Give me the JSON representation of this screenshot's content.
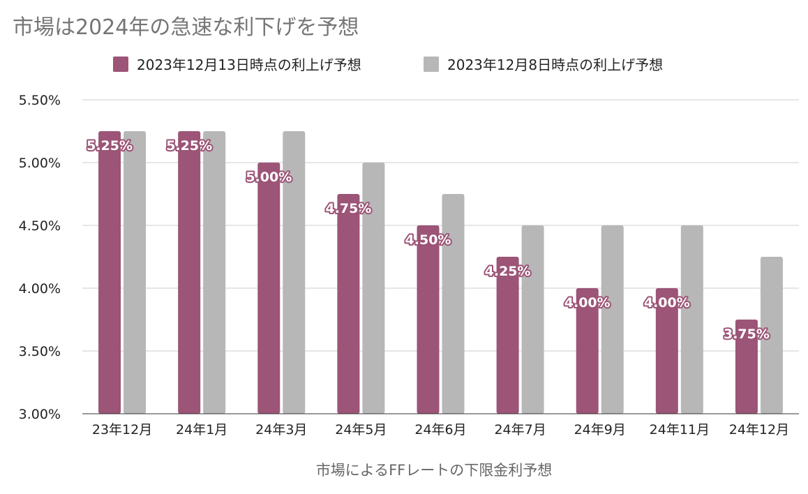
{
  "chart_data": {
    "type": "bar",
    "title": "市場は2024年の急速な利下げを予想",
    "xlabel": "市場によるFFレートの下限金利予想",
    "ylabel": "",
    "ylim": [
      3.0,
      5.5
    ],
    "y_ticks": [
      "3.00%",
      "3.50%",
      "4.00%",
      "4.50%",
      "5.00%",
      "5.50%"
    ],
    "categories": [
      "23年12月",
      "24年1月",
      "24年3月",
      "24年5月",
      "24年6月",
      "24年7月",
      "24年9月",
      "24年11月",
      "24年12月"
    ],
    "series": [
      {
        "name": "2023年12月13日時点の利上げ予想",
        "color": "#9c5477",
        "values": [
          5.25,
          5.25,
          5.0,
          4.75,
          4.5,
          4.25,
          4.0,
          4.0,
          3.75
        ],
        "data_labels": [
          "5.25%",
          "5.25%",
          "5.00%",
          "4.75%",
          "4.50%",
          "4.25%",
          "4.00%",
          "4.00%",
          "3.75%"
        ]
      },
      {
        "name": "2023年12月8日時点の利上げ予想",
        "color": "#b7b7b7",
        "values": [
          5.25,
          5.25,
          5.25,
          5.0,
          4.75,
          4.5,
          4.5,
          4.5,
          4.25
        ]
      }
    ],
    "grid": true,
    "legend": "top-center"
  }
}
